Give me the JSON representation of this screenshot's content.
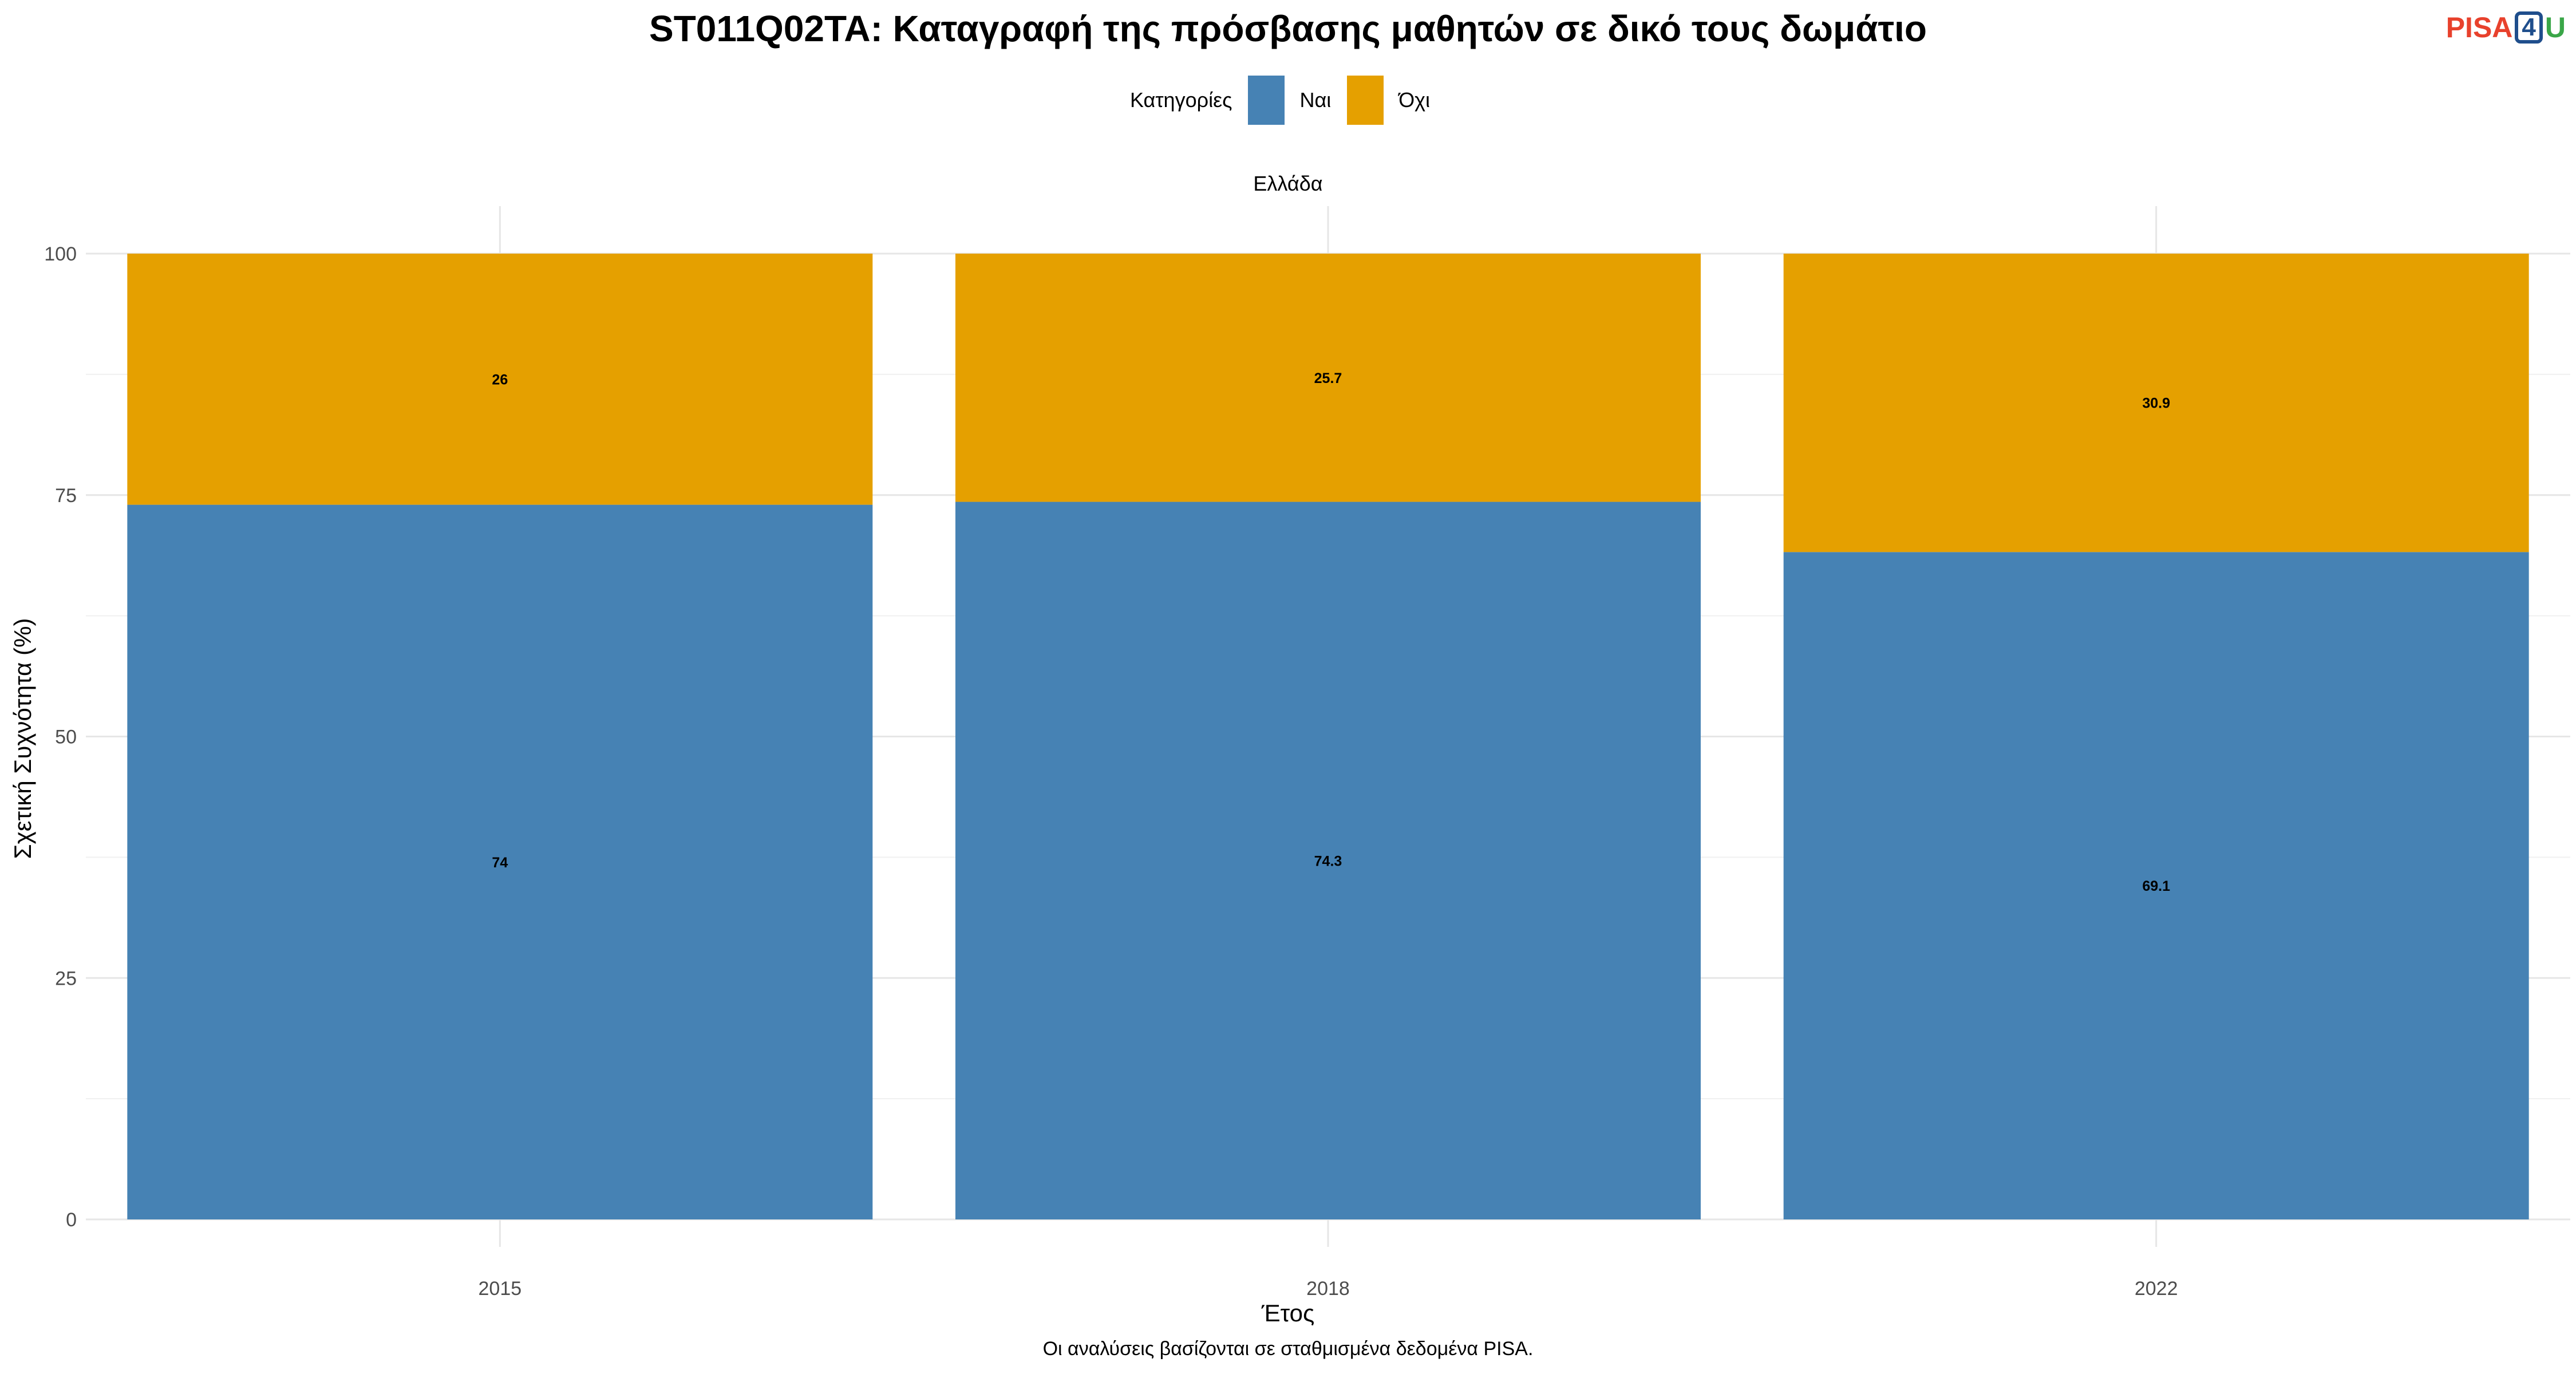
{
  "header": {
    "title": "ST011Q02TA: Καταγραφή της πρόσβασης μαθητών σε δικό τους δωμάτιο",
    "logo": {
      "pisa": "PISA",
      "four": "4",
      "u": "U"
    }
  },
  "legend": {
    "title": "Κατηγορίες",
    "items": [
      {
        "label": "Ναι",
        "color": "#4682b4"
      },
      {
        "label": "Όχι",
        "color": "#e5a000"
      }
    ]
  },
  "facet_label": "Ελλάδα",
  "footer": {
    "caption": "Οι αναλύσεις βασίζονται σε σταθμισμένα δεδομένα PISA."
  },
  "chart_data": {
    "type": "bar",
    "stacked": true,
    "title": "ST011Q02TA: Καταγραφή της πρόσβασης μαθητών σε δικό τους δωμάτιο",
    "facet": "Ελλάδα",
    "xlabel": "Έτος",
    "ylabel": "Σχετική Συχνότητα (%)",
    "categories": [
      "2015",
      "2018",
      "2022"
    ],
    "series": [
      {
        "name": "Ναι",
        "color": "#4682b4",
        "values": [
          74,
          74.3,
          69.1
        ]
      },
      {
        "name": "Όχι",
        "color": "#e5a000",
        "values": [
          26,
          25.7,
          30.9
        ]
      }
    ],
    "ylim": [
      0,
      100
    ],
    "yticks": [
      0,
      25,
      50,
      75,
      100
    ],
    "grid": true,
    "legend_position": "top"
  }
}
